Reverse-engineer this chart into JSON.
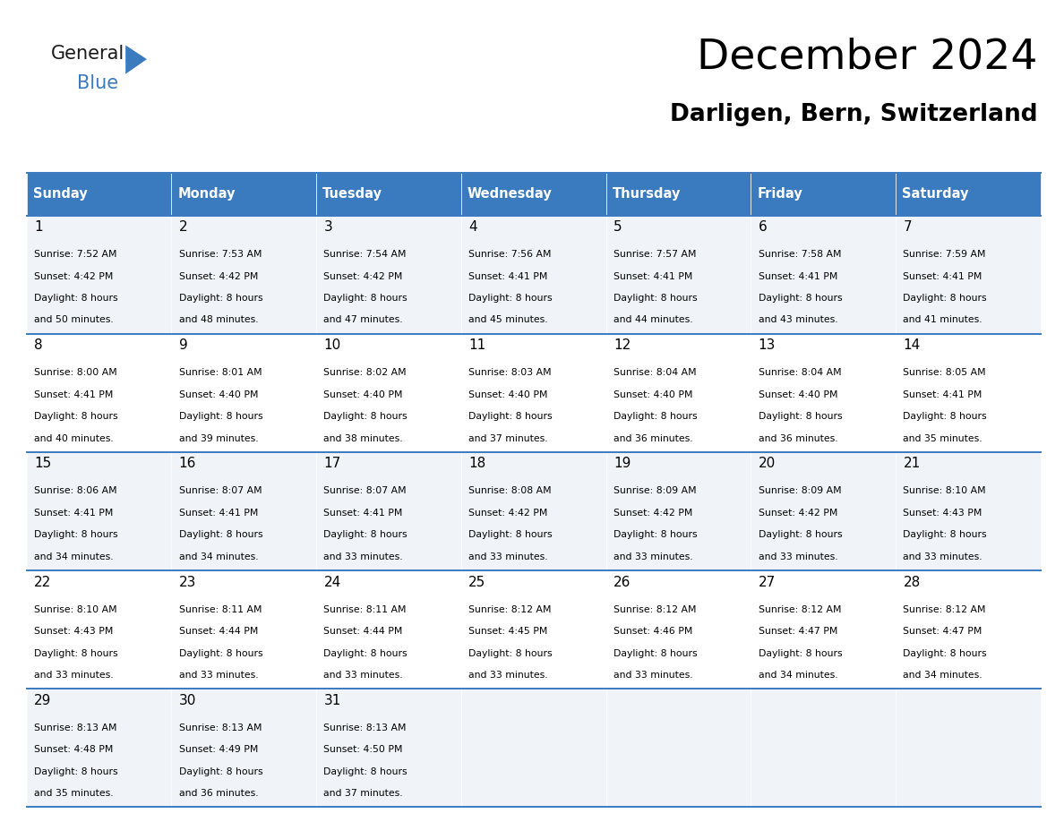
{
  "title": "December 2024",
  "subtitle": "Darligen, Bern, Switzerland",
  "header_color": "#3a7abf",
  "header_text_color": "#ffffff",
  "cell_bg_even": "#f0f4f8",
  "cell_bg_odd": "#ffffff",
  "border_color": "#3a7abf",
  "text_color": "#000000",
  "logo_black": "#1a1a1a",
  "logo_blue": "#3a7abf",
  "days_of_week": [
    "Sunday",
    "Monday",
    "Tuesday",
    "Wednesday",
    "Thursday",
    "Friday",
    "Saturday"
  ],
  "weeks": [
    [
      {
        "day": "1",
        "sunrise": "7:52 AM",
        "sunset": "4:42 PM",
        "daylight_h": "8 hours",
        "daylight_m": "and 50 minutes."
      },
      {
        "day": "2",
        "sunrise": "7:53 AM",
        "sunset": "4:42 PM",
        "daylight_h": "8 hours",
        "daylight_m": "and 48 minutes."
      },
      {
        "day": "3",
        "sunrise": "7:54 AM",
        "sunset": "4:42 PM",
        "daylight_h": "8 hours",
        "daylight_m": "and 47 minutes."
      },
      {
        "day": "4",
        "sunrise": "7:56 AM",
        "sunset": "4:41 PM",
        "daylight_h": "8 hours",
        "daylight_m": "and 45 minutes."
      },
      {
        "day": "5",
        "sunrise": "7:57 AM",
        "sunset": "4:41 PM",
        "daylight_h": "8 hours",
        "daylight_m": "and 44 minutes."
      },
      {
        "day": "6",
        "sunrise": "7:58 AM",
        "sunset": "4:41 PM",
        "daylight_h": "8 hours",
        "daylight_m": "and 43 minutes."
      },
      {
        "day": "7",
        "sunrise": "7:59 AM",
        "sunset": "4:41 PM",
        "daylight_h": "8 hours",
        "daylight_m": "and 41 minutes."
      }
    ],
    [
      {
        "day": "8",
        "sunrise": "8:00 AM",
        "sunset": "4:41 PM",
        "daylight_h": "8 hours",
        "daylight_m": "and 40 minutes."
      },
      {
        "day": "9",
        "sunrise": "8:01 AM",
        "sunset": "4:40 PM",
        "daylight_h": "8 hours",
        "daylight_m": "and 39 minutes."
      },
      {
        "day": "10",
        "sunrise": "8:02 AM",
        "sunset": "4:40 PM",
        "daylight_h": "8 hours",
        "daylight_m": "and 38 minutes."
      },
      {
        "day": "11",
        "sunrise": "8:03 AM",
        "sunset": "4:40 PM",
        "daylight_h": "8 hours",
        "daylight_m": "and 37 minutes."
      },
      {
        "day": "12",
        "sunrise": "8:04 AM",
        "sunset": "4:40 PM",
        "daylight_h": "8 hours",
        "daylight_m": "and 36 minutes."
      },
      {
        "day": "13",
        "sunrise": "8:04 AM",
        "sunset": "4:40 PM",
        "daylight_h": "8 hours",
        "daylight_m": "and 36 minutes."
      },
      {
        "day": "14",
        "sunrise": "8:05 AM",
        "sunset": "4:41 PM",
        "daylight_h": "8 hours",
        "daylight_m": "and 35 minutes."
      }
    ],
    [
      {
        "day": "15",
        "sunrise": "8:06 AM",
        "sunset": "4:41 PM",
        "daylight_h": "8 hours",
        "daylight_m": "and 34 minutes."
      },
      {
        "day": "16",
        "sunrise": "8:07 AM",
        "sunset": "4:41 PM",
        "daylight_h": "8 hours",
        "daylight_m": "and 34 minutes."
      },
      {
        "day": "17",
        "sunrise": "8:07 AM",
        "sunset": "4:41 PM",
        "daylight_h": "8 hours",
        "daylight_m": "and 33 minutes."
      },
      {
        "day": "18",
        "sunrise": "8:08 AM",
        "sunset": "4:42 PM",
        "daylight_h": "8 hours",
        "daylight_m": "and 33 minutes."
      },
      {
        "day": "19",
        "sunrise": "8:09 AM",
        "sunset": "4:42 PM",
        "daylight_h": "8 hours",
        "daylight_m": "and 33 minutes."
      },
      {
        "day": "20",
        "sunrise": "8:09 AM",
        "sunset": "4:42 PM",
        "daylight_h": "8 hours",
        "daylight_m": "and 33 minutes."
      },
      {
        "day": "21",
        "sunrise": "8:10 AM",
        "sunset": "4:43 PM",
        "daylight_h": "8 hours",
        "daylight_m": "and 33 minutes."
      }
    ],
    [
      {
        "day": "22",
        "sunrise": "8:10 AM",
        "sunset": "4:43 PM",
        "daylight_h": "8 hours",
        "daylight_m": "and 33 minutes."
      },
      {
        "day": "23",
        "sunrise": "8:11 AM",
        "sunset": "4:44 PM",
        "daylight_h": "8 hours",
        "daylight_m": "and 33 minutes."
      },
      {
        "day": "24",
        "sunrise": "8:11 AM",
        "sunset": "4:44 PM",
        "daylight_h": "8 hours",
        "daylight_m": "and 33 minutes."
      },
      {
        "day": "25",
        "sunrise": "8:12 AM",
        "sunset": "4:45 PM",
        "daylight_h": "8 hours",
        "daylight_m": "and 33 minutes."
      },
      {
        "day": "26",
        "sunrise": "8:12 AM",
        "sunset": "4:46 PM",
        "daylight_h": "8 hours",
        "daylight_m": "and 33 minutes."
      },
      {
        "day": "27",
        "sunrise": "8:12 AM",
        "sunset": "4:47 PM",
        "daylight_h": "8 hours",
        "daylight_m": "and 34 minutes."
      },
      {
        "day": "28",
        "sunrise": "8:12 AM",
        "sunset": "4:47 PM",
        "daylight_h": "8 hours",
        "daylight_m": "and 34 minutes."
      }
    ],
    [
      {
        "day": "29",
        "sunrise": "8:13 AM",
        "sunset": "4:48 PM",
        "daylight_h": "8 hours",
        "daylight_m": "and 35 minutes."
      },
      {
        "day": "30",
        "sunrise": "8:13 AM",
        "sunset": "4:49 PM",
        "daylight_h": "8 hours",
        "daylight_m": "and 36 minutes."
      },
      {
        "day": "31",
        "sunrise": "8:13 AM",
        "sunset": "4:50 PM",
        "daylight_h": "8 hours",
        "daylight_m": "and 37 minutes."
      },
      null,
      null,
      null,
      null
    ]
  ]
}
